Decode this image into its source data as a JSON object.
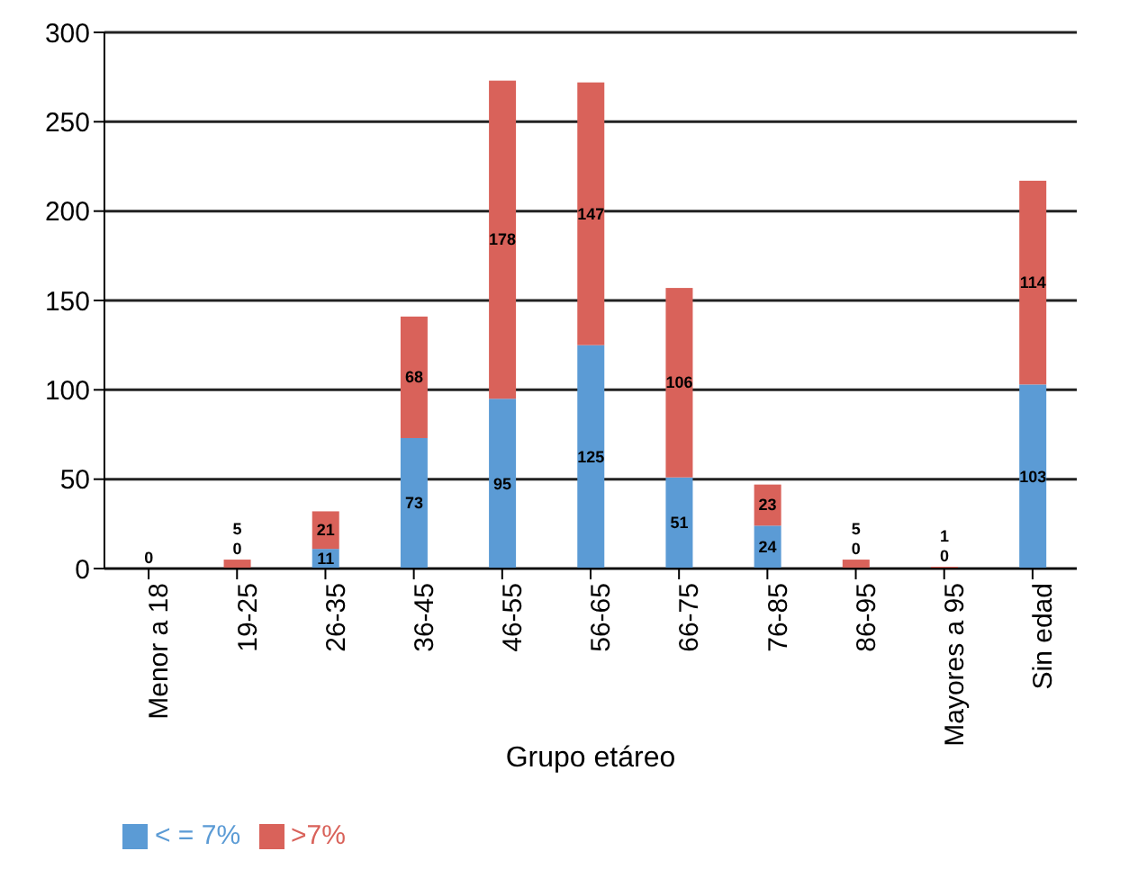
{
  "chart_data": {
    "type": "bar",
    "stacked": true,
    "xlabel": "Grupo etáreo",
    "categories": [
      "Menor a 18",
      "19-25",
      "26-35",
      "36-45",
      "46-55",
      "56-65",
      "66-75",
      "76-85",
      "86-95",
      "Mayores a 95",
      "Sin edad"
    ],
    "series": [
      {
        "name": "< = 7%",
        "color": "#5b9bd5",
        "values": [
          0,
          0,
          11,
          73,
          95,
          125,
          51,
          24,
          0,
          0,
          103
        ],
        "value_labels": [
          "0",
          "0",
          "11",
          "73",
          "95",
          "125",
          "51",
          "24",
          "0",
          "0",
          "103"
        ]
      },
      {
        "name": ">7%",
        "color": "#d9625a",
        "values": [
          0,
          5,
          21,
          68,
          178,
          147,
          106,
          23,
          5,
          1,
          114
        ],
        "value_labels": [
          null,
          "5",
          "21",
          "68",
          "178",
          "147",
          "106",
          "23",
          "5",
          "1",
          "114"
        ]
      }
    ],
    "ylim": [
      0,
      300
    ],
    "yticks": [
      0,
      50,
      100,
      150,
      200,
      250,
      300
    ],
    "grid": "y",
    "legend": "bottom left"
  }
}
